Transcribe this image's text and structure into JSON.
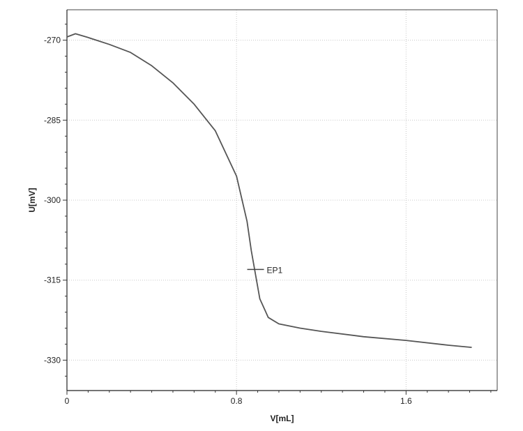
{
  "chart_data": {
    "type": "line",
    "title": "",
    "xlabel": "V[mL]",
    "ylabel": "U[mV]",
    "xlim": [
      0,
      2.03
    ],
    "ylim": [
      -335.7,
      -264.3
    ],
    "x_ticks": [
      0,
      0.8,
      1.6
    ],
    "x_tick_labels": [
      "0",
      "0.8",
      "1.6"
    ],
    "y_ticks": [
      -270,
      -285,
      -300,
      -315,
      -330
    ],
    "y_tick_labels": [
      "-270",
      "-285",
      "-300",
      "-315",
      "-330"
    ],
    "x_gridlines": [
      0.8,
      1.6
    ],
    "y_gridlines": [
      -270,
      -285,
      -300,
      -315,
      -330
    ],
    "grid": true,
    "series": [
      {
        "name": "",
        "x": [
          0.0,
          0.04,
          0.1,
          0.2,
          0.3,
          0.4,
          0.5,
          0.6,
          0.7,
          0.8,
          0.85,
          0.87,
          0.89,
          0.91,
          0.95,
          1.0,
          1.1,
          1.2,
          1.4,
          1.6,
          1.8,
          1.91
        ],
        "y": [
          -269.4,
          -268.8,
          -269.5,
          -270.8,
          -272.3,
          -274.8,
          -278.0,
          -282.0,
          -287.0,
          -295.5,
          -304.0,
          -309.5,
          -314.0,
          -318.5,
          -322.0,
          -323.2,
          -324.0,
          -324.6,
          -325.6,
          -326.3,
          -327.2,
          -327.6
        ]
      }
    ],
    "annotations": [
      {
        "label": "EP1",
        "x": 0.89,
        "y": -313.0
      }
    ]
  }
}
